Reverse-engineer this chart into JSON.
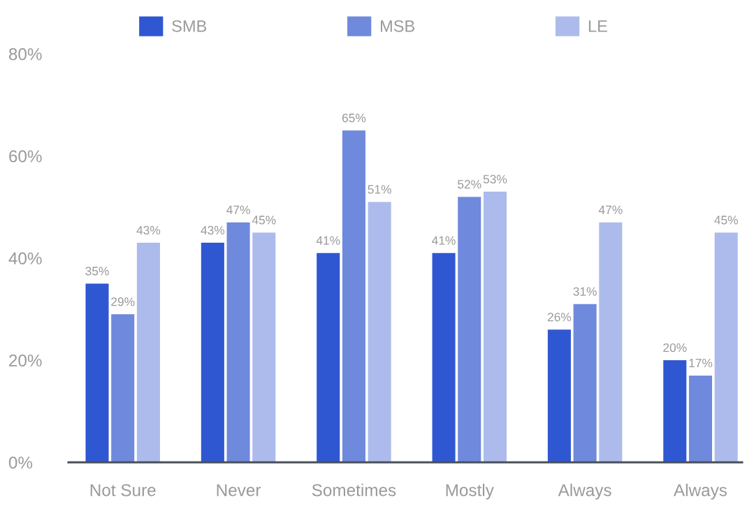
{
  "chart_data": {
    "type": "bar",
    "categories": [
      "Not Sure",
      "Never",
      "Sometimes",
      "Mostly",
      "Always",
      "Always"
    ],
    "series": [
      {
        "name": "SMB",
        "color": "#3057d2",
        "values": [
          35,
          43,
          41,
          41,
          26,
          20
        ],
        "value_labels": [
          "35%",
          "43%",
          "41%",
          "41%",
          "26%",
          "20%"
        ]
      },
      {
        "name": "MSB",
        "color": "#6f89dc",
        "values": [
          29,
          47,
          65,
          52,
          31,
          17
        ],
        "value_labels": [
          "29%",
          "47%",
          "65%",
          "52%",
          "31%",
          "17%"
        ]
      },
      {
        "name": "LE",
        "color": "#adbbec",
        "values": [
          43,
          45,
          51,
          53,
          47,
          45
        ],
        "value_labels": [
          "43%",
          "45%",
          "51%",
          "53%",
          "47%",
          "45%"
        ]
      }
    ],
    "ylim": [
      0,
      80
    ],
    "yticks": [
      {
        "value": 0,
        "label": "0%"
      },
      {
        "value": 20,
        "label": "20%"
      },
      {
        "value": 40,
        "label": "40%"
      },
      {
        "value": 60,
        "label": "60%"
      },
      {
        "value": 80,
        "label": "80%"
      }
    ],
    "legend": "top"
  }
}
